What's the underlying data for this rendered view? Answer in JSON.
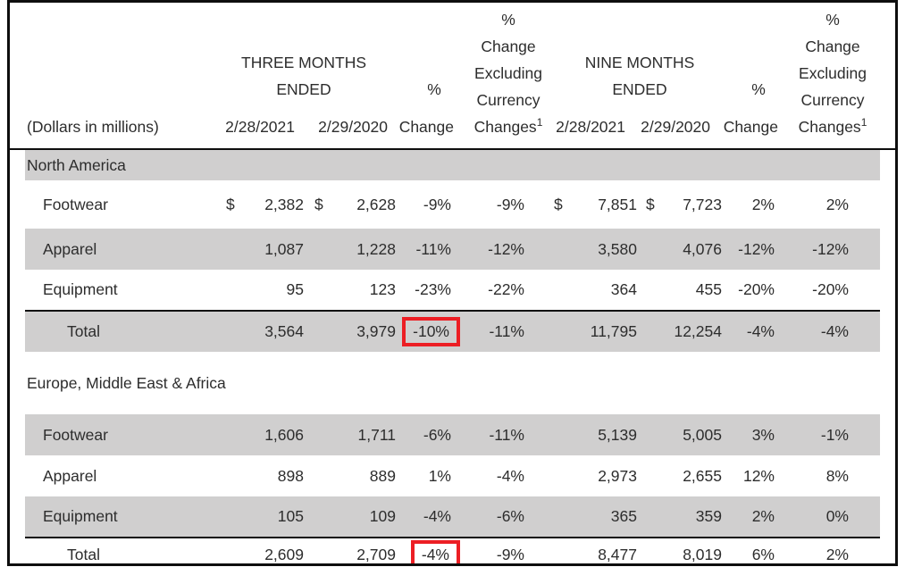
{
  "document": {
    "note": "(Dollars in millions)",
    "footnote_marker": "1"
  },
  "header": {
    "three_months": "THREE MONTHS\nENDED",
    "nine_months": "NINE MONTHS\nENDED",
    "pct_change_top": "%",
    "pct_change_bottom": "Change",
    "pct_excl_top_lines": "%\nChange\nExcluding\nCurrency",
    "pct_excl_last_word": "Changes",
    "dates_3mo": [
      "2/28/2021",
      "2/29/2020"
    ],
    "dates_9mo": [
      "2/28/2021",
      "2/29/2020"
    ]
  },
  "colors": {
    "row_shading": "#d0cfcf",
    "highlight_box": "#ec1e24",
    "border": "#0e0e0e"
  },
  "table": {
    "rows": [
      {
        "type": "section",
        "label": "North America",
        "shaded": true
      },
      {
        "type": "data",
        "label": "Footwear",
        "shaded": false,
        "cells": [
          "$",
          "2,382",
          "$",
          "2,628",
          "-9%",
          "-9%",
          "$",
          "7,851",
          "$",
          "7,723",
          "2%",
          "2%"
        ]
      },
      {
        "type": "data",
        "label": "Apparel",
        "shaded": true,
        "cells": [
          "",
          "1,087",
          "",
          "1,228",
          "-11%",
          "-12%",
          "",
          "3,580",
          "",
          "4,076",
          "-12%",
          "-12%"
        ]
      },
      {
        "type": "data",
        "label": "Equipment",
        "shaded": false,
        "cells": [
          "",
          "95",
          "",
          "123",
          "-23%",
          "-22%",
          "",
          "364",
          "",
          "455",
          "-20%",
          "-20%"
        ]
      },
      {
        "type": "total",
        "label": "Total",
        "shaded": true,
        "highlight": "p1",
        "cells": [
          "",
          "3,564",
          "",
          "3,979",
          "-10%",
          "-11%",
          "",
          "11,795",
          "",
          "12,254",
          "-4%",
          "-4%"
        ]
      },
      {
        "type": "section",
        "label": "Europe, Middle East & Africa",
        "shaded": false
      },
      {
        "type": "data",
        "label": "Footwear",
        "shaded": true,
        "cells": [
          "",
          "1,606",
          "",
          "1,711",
          "-6%",
          "-11%",
          "",
          "5,139",
          "",
          "5,005",
          "3%",
          "-1%"
        ]
      },
      {
        "type": "data",
        "label": "Apparel",
        "shaded": false,
        "cells": [
          "",
          "898",
          "",
          "889",
          "1%",
          "-4%",
          "",
          "2,973",
          "",
          "2,655",
          "12%",
          "8%"
        ]
      },
      {
        "type": "data",
        "label": "Equipment",
        "shaded": true,
        "cells": [
          "",
          "105",
          "",
          "109",
          "-4%",
          "-6%",
          "",
          "365",
          "",
          "359",
          "2%",
          "0%"
        ]
      },
      {
        "type": "total",
        "label": "Total",
        "shaded": false,
        "highlight": "p1",
        "cells": [
          "",
          "2,609",
          "",
          "2,709",
          "-4%",
          "-9%",
          "",
          "8,477",
          "",
          "8,019",
          "6%",
          "2%"
        ]
      }
    ]
  }
}
